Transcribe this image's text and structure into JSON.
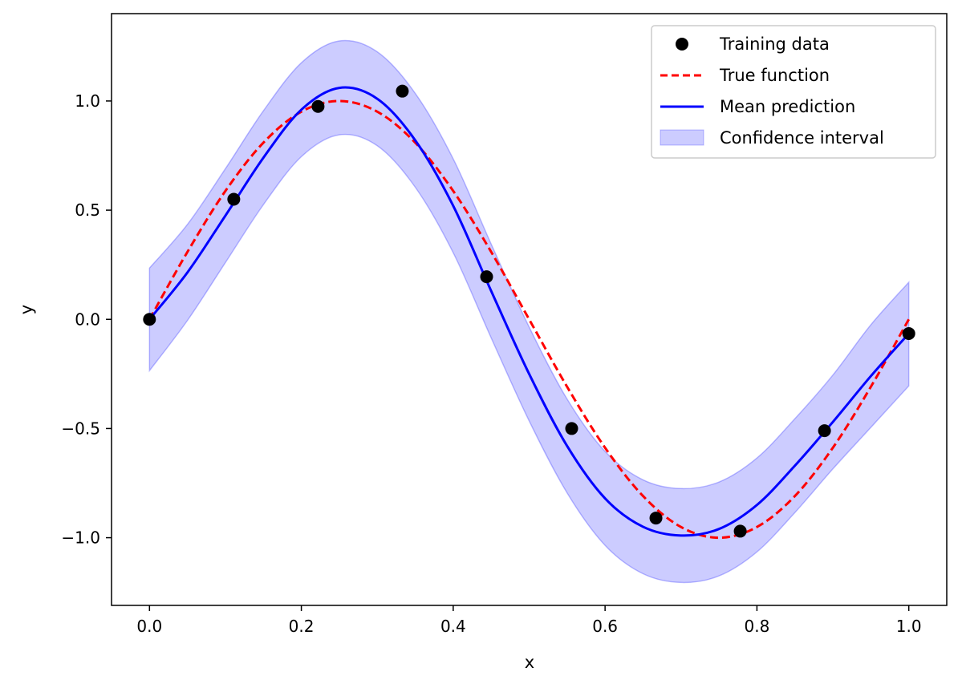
{
  "colors": {
    "training": "#000000",
    "true_function": "#ff0000",
    "mean": "#0000ff",
    "band_fill": "#0000ff",
    "band_opacity": 0.2
  },
  "chart_data": {
    "type": "line",
    "title": "",
    "xlabel": "x",
    "ylabel": "y",
    "xlim": [
      -0.05,
      1.05
    ],
    "ylim": [
      -1.31,
      1.4
    ],
    "grid": false,
    "legend_position": "top-right",
    "x_ticks": [
      "0.0",
      "0.2",
      "0.4",
      "0.6",
      "0.8",
      "1.0"
    ],
    "x_tick_values": [
      0,
      0.2,
      0.4,
      0.6,
      0.8,
      1.0
    ],
    "y_ticks": [
      "−1.0",
      "−0.5",
      "0.0",
      "0.5",
      "1.0"
    ],
    "y_tick_values": [
      -1.0,
      -0.5,
      0.0,
      0.5,
      1.0
    ],
    "legend": [
      {
        "label": "Training data",
        "kind": "marker"
      },
      {
        "label": "True function",
        "kind": "dashed"
      },
      {
        "label": "Mean prediction",
        "kind": "line"
      },
      {
        "label": "Confidence interval",
        "kind": "band"
      }
    ],
    "training_data": {
      "x": [
        0.0,
        0.111,
        0.222,
        0.333,
        0.444,
        0.556,
        0.667,
        0.778,
        0.889,
        1.0
      ],
      "y": [
        0.0,
        0.55,
        0.975,
        1.045,
        0.195,
        -0.5,
        -0.91,
        -0.97,
        -0.51,
        -0.065
      ]
    },
    "true_function": {
      "x": [
        0.0,
        0.05,
        0.1,
        0.15,
        0.2,
        0.25,
        0.3,
        0.35,
        0.4,
        0.45,
        0.5,
        0.55,
        0.6,
        0.65,
        0.7,
        0.75,
        0.8,
        0.85,
        0.9,
        0.95,
        1.0
      ],
      "y": [
        0.0,
        0.309,
        0.588,
        0.809,
        0.951,
        1.0,
        0.951,
        0.809,
        0.588,
        0.309,
        0.0,
        -0.309,
        -0.588,
        -0.809,
        -0.951,
        -1.0,
        -0.951,
        -0.809,
        -0.588,
        -0.309,
        0.0
      ]
    },
    "mean_prediction": {
      "x": [
        0.0,
        0.05,
        0.1,
        0.15,
        0.2,
        0.25,
        0.3,
        0.35,
        0.4,
        0.45,
        0.5,
        0.55,
        0.6,
        0.65,
        0.7,
        0.75,
        0.8,
        0.85,
        0.9,
        0.95,
        1.0
      ],
      "y": [
        0.0,
        0.215,
        0.475,
        0.74,
        0.96,
        1.06,
        1.01,
        0.82,
        0.52,
        0.13,
        -0.25,
        -0.58,
        -0.82,
        -0.95,
        -0.99,
        -0.96,
        -0.85,
        -0.67,
        -0.47,
        -0.26,
        -0.065
      ]
    },
    "confidence_interval": {
      "x": [
        0.0,
        0.05,
        0.1,
        0.15,
        0.2,
        0.25,
        0.3,
        0.35,
        0.4,
        0.45,
        0.5,
        0.55,
        0.6,
        0.65,
        0.7,
        0.75,
        0.8,
        0.85,
        0.9,
        0.95,
        1.0
      ],
      "lower": [
        -0.235,
        -0.005,
        0.26,
        0.525,
        0.745,
        0.845,
        0.795,
        0.605,
        0.305,
        -0.085,
        -0.465,
        -0.795,
        -1.035,
        -1.165,
        -1.205,
        -1.175,
        -1.065,
        -0.885,
        -0.685,
        -0.495,
        -0.305
      ],
      "upper": [
        0.235,
        0.435,
        0.69,
        0.955,
        1.175,
        1.275,
        1.225,
        1.035,
        0.735,
        0.345,
        -0.035,
        -0.365,
        -0.605,
        -0.735,
        -0.775,
        -0.745,
        -0.635,
        -0.455,
        -0.255,
        -0.025,
        0.17
      ]
    }
  }
}
